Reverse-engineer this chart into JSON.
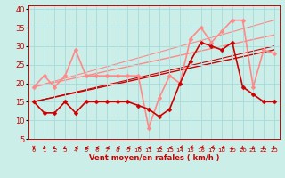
{
  "xlabel": "Vent moyen/en rafales ( km/h )",
  "bg_color": "#cceee8",
  "grid_color": "#aadddd",
  "xlim": [
    -0.5,
    23.5
  ],
  "ylim": [
    5,
    41
  ],
  "yticks": [
    5,
    10,
    15,
    20,
    25,
    30,
    35,
    40
  ],
  "xticks": [
    0,
    1,
    2,
    3,
    4,
    5,
    6,
    7,
    8,
    9,
    10,
    11,
    12,
    13,
    14,
    15,
    16,
    17,
    18,
    19,
    20,
    21,
    22,
    23
  ],
  "series_dark": {
    "x": [
      0,
      1,
      2,
      3,
      4,
      5,
      6,
      7,
      8,
      9,
      10,
      11,
      12,
      13,
      14,
      15,
      16,
      17,
      18,
      19,
      20,
      21,
      22,
      23
    ],
    "y": [
      15,
      12,
      12,
      15,
      12,
      15,
      15,
      15,
      15,
      15,
      14,
      13,
      11,
      13,
      20,
      26,
      31,
      30,
      29,
      31,
      19,
      17,
      15,
      15
    ],
    "color": "#cc0000",
    "lw": 1.2,
    "ms": 2.5
  },
  "series_light": {
    "x": [
      0,
      1,
      2,
      3,
      4,
      5,
      6,
      7,
      8,
      9,
      10,
      11,
      12,
      13,
      14,
      15,
      16,
      17,
      18,
      19,
      20,
      21,
      22,
      23
    ],
    "y": [
      19,
      22,
      19,
      22,
      29,
      22,
      22,
      22,
      22,
      22,
      22,
      8,
      16,
      22,
      20,
      32,
      35,
      31,
      34,
      37,
      37,
      19,
      29,
      28
    ],
    "color": "#ff8888",
    "lw": 1.2,
    "ms": 2.5
  },
  "trend_lines": [
    {
      "x0": 0,
      "y0": 15,
      "x1": 23,
      "y1": 29,
      "color": "#cc0000",
      "lw": 1.0
    },
    {
      "x0": 0,
      "y0": 15,
      "x1": 23,
      "y1": 30,
      "color": "#cc0000",
      "lw": 0.8
    },
    {
      "x0": 0,
      "y0": 19,
      "x1": 23,
      "y1": 33,
      "color": "#ff8888",
      "lw": 1.0
    },
    {
      "x0": 0,
      "y0": 19,
      "x1": 23,
      "y1": 37,
      "color": "#ff8888",
      "lw": 0.8
    }
  ],
  "arrow_angles": [
    0,
    -30,
    -45,
    -45,
    -90,
    -90,
    -90,
    -90,
    -90,
    -90,
    -90,
    -90,
    -90,
    -90,
    -60,
    -60,
    -60,
    -60,
    -60,
    -45,
    -30,
    -30,
    -30,
    -30
  ],
  "arrow_color": "#cc0000"
}
